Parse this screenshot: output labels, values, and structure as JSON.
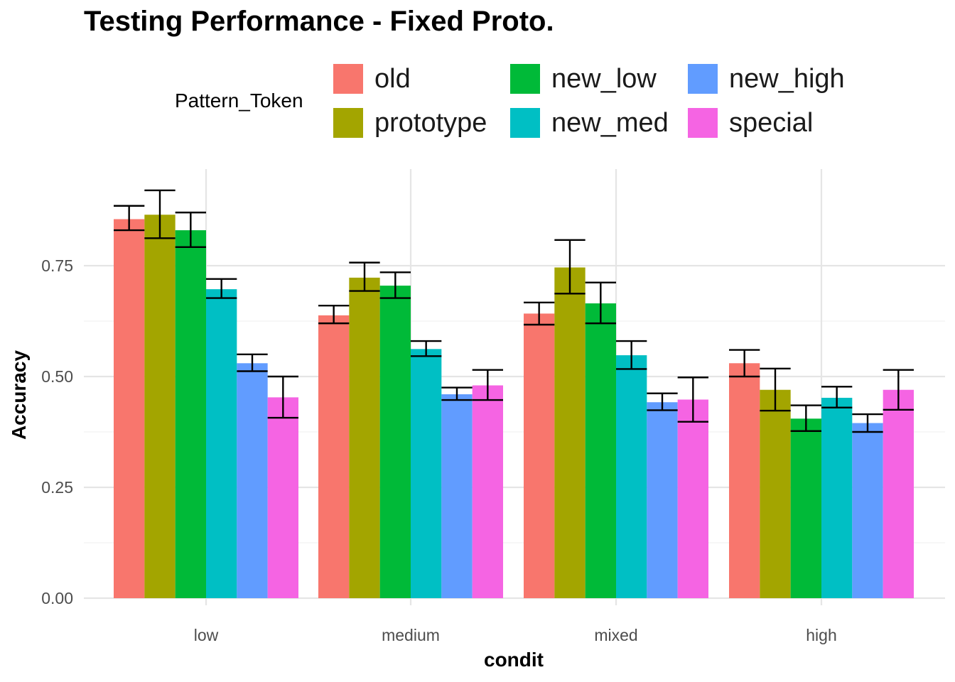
{
  "chart_data": {
    "type": "bar",
    "title": "Testing Performance - Fixed Proto.",
    "xlabel": "condit",
    "ylabel": "Accuracy",
    "ylim": [
      0,
      0.97
    ],
    "yticks": [
      "0.00",
      "0.25",
      "0.50",
      "0.75"
    ],
    "ytick_values": [
      0,
      0.25,
      0.5,
      0.75
    ],
    "grid": true,
    "legend": {
      "title": "Pattern_Token",
      "placement": "top"
    },
    "categories": [
      "low",
      "medium",
      "mixed",
      "high"
    ],
    "series": [
      {
        "name": "old",
        "color": "#F8766D",
        "values": [
          0.855,
          0.638,
          0.642,
          0.53
        ],
        "err_low": [
          0.83,
          0.62,
          0.617,
          0.5
        ],
        "err_high": [
          0.885,
          0.66,
          0.667,
          0.56
        ]
      },
      {
        "name": "prototype",
        "color": "#A3A500",
        "values": [
          0.865,
          0.723,
          0.746,
          0.47
        ],
        "err_low": [
          0.812,
          0.693,
          0.687,
          0.423
        ],
        "err_high": [
          0.92,
          0.757,
          0.808,
          0.518
        ]
      },
      {
        "name": "new_low",
        "color": "#00BA38",
        "values": [
          0.83,
          0.705,
          0.665,
          0.405
        ],
        "err_low": [
          0.792,
          0.677,
          0.62,
          0.377
        ],
        "err_high": [
          0.87,
          0.735,
          0.712,
          0.435
        ]
      },
      {
        "name": "new_med",
        "color": "#00BFC4",
        "values": [
          0.697,
          0.562,
          0.548,
          0.452
        ],
        "err_low": [
          0.677,
          0.546,
          0.517,
          0.43
        ],
        "err_high": [
          0.72,
          0.58,
          0.58,
          0.477
        ]
      },
      {
        "name": "new_high",
        "color": "#619CFF",
        "values": [
          0.53,
          0.46,
          0.442,
          0.395
        ],
        "err_low": [
          0.512,
          0.447,
          0.424,
          0.375
        ],
        "err_high": [
          0.55,
          0.475,
          0.462,
          0.415
        ]
      },
      {
        "name": "special",
        "color": "#F564E3",
        "values": [
          0.453,
          0.48,
          0.448,
          0.47
        ],
        "err_low": [
          0.407,
          0.447,
          0.398,
          0.425
        ],
        "err_high": [
          0.5,
          0.515,
          0.498,
          0.515
        ]
      }
    ]
  }
}
